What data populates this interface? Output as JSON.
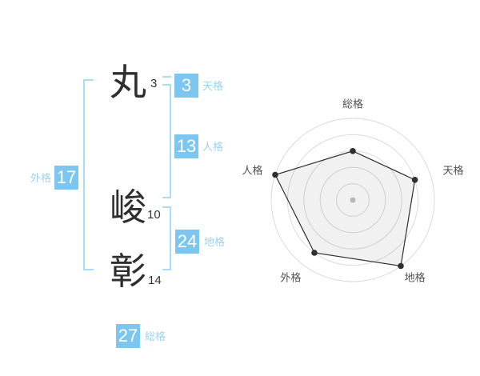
{
  "app": {
    "description": "Japanese name numerology (seimei handan) result panel for the name 丸 峻彰"
  },
  "name_display": {
    "characters": [
      {
        "char": "丸",
        "strokes": "3"
      },
      {
        "char": "峻",
        "strokes": "10"
      },
      {
        "char": "彰",
        "strokes": "14"
      }
    ]
  },
  "kaku": {
    "tenkaku": {
      "label": "天格",
      "value": "3"
    },
    "jinkaku": {
      "label": "人格",
      "value": "13"
    },
    "chikaku": {
      "label": "地格",
      "value": "24"
    },
    "gaikaku": {
      "label": "外格",
      "value": "17"
    },
    "soukaku": {
      "label": "総格",
      "value": "27"
    }
  },
  "chart_data": {
    "type": "radar",
    "categories": [
      "総格",
      "天格",
      "地格",
      "外格",
      "人格"
    ],
    "values": [
      3,
      4,
      5,
      4,
      5
    ],
    "max": 5,
    "rings": 5,
    "start_angle_deg": 0,
    "direction": "clockwise",
    "grid": "circular",
    "legend": "none",
    "title": ""
  },
  "colors": {
    "badge_bg": "#7cc6ef",
    "badge_text": "#ffffff",
    "kaku_label": "#9dd2f2",
    "bracket": "#a9dcf7",
    "name_text": "#2e2e2e",
    "stroke_text": "#333333",
    "radar_ring": "#dbdbdb",
    "radar_line": "#2f2f2f",
    "radar_fill": "rgba(0,0,0,0.055)",
    "radar_label": "#4f4f4f",
    "radar_center_dot": "#c3c3c3"
  }
}
